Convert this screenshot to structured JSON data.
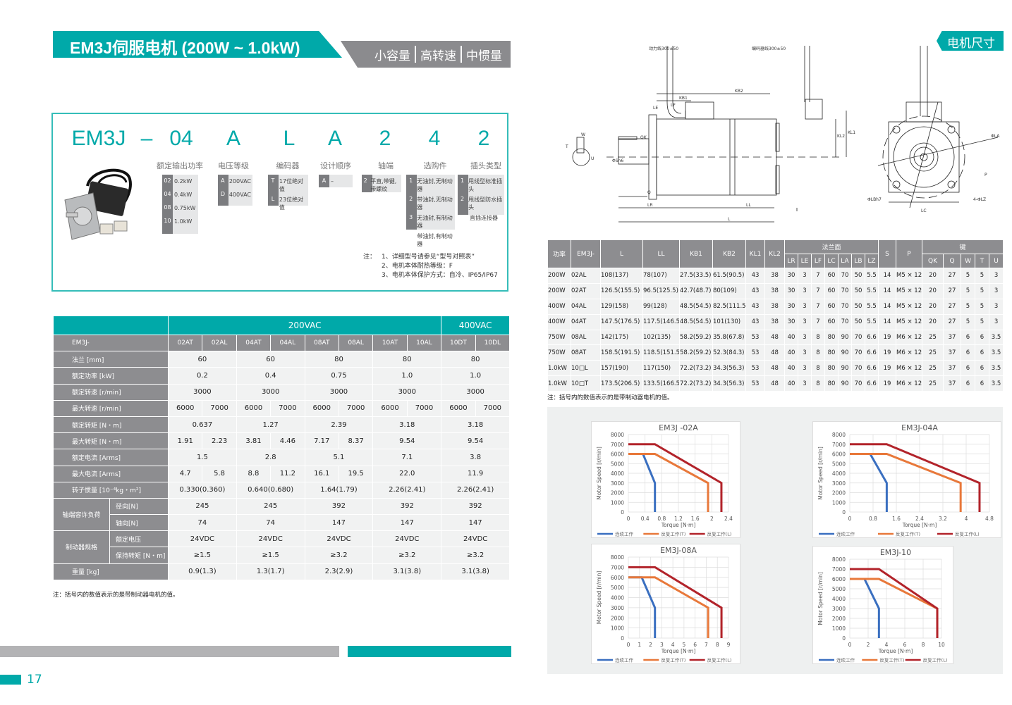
{
  "header": {
    "title": "EM3J伺服电机 (200W ~ 1.0kW)",
    "tags": [
      "小容量",
      "高转速",
      "中惯量"
    ],
    "section_tag": "电机尺寸"
  },
  "model_code": {
    "chars": [
      "EM3J",
      "–",
      "04",
      "A",
      "L",
      "A",
      "2",
      "4",
      "2"
    ],
    "labels": [
      "额定输出功率",
      "电压等级",
      "编码器",
      "设计顺序",
      "轴端",
      "选购件",
      "插头类型"
    ],
    "options": [
      [
        [
          "02",
          "0.2kW"
        ],
        [
          "04",
          "0.4kW"
        ],
        [
          "08",
          "0.75kW"
        ],
        [
          "10",
          "1.0kW"
        ]
      ],
      [
        [
          "A",
          "200VAC"
        ],
        [
          "D",
          "400VAC"
        ]
      ],
      [
        [
          "T",
          "17位绝对值"
        ],
        [
          "L",
          "23位绝对值"
        ]
      ],
      [
        [
          "A",
          "–"
        ]
      ],
      [
        [
          "2",
          "平直,带键,带螺纹"
        ]
      ],
      [
        [
          "1",
          "无油封,无制动器"
        ],
        [
          "2",
          "带油封,无制动器"
        ],
        [
          "3",
          "无油封,有制动器"
        ],
        [
          "4",
          "带油封,有制动器"
        ]
      ],
      [
        [
          "1",
          "甩线型标准插头"
        ],
        [
          "2",
          "甩线型防水插头"
        ],
        [
          "3",
          "直插连接器"
        ]
      ]
    ],
    "notes_label": "注：",
    "notes": [
      "1、详细型号请参见“型号对照表”",
      "2、电机本体耐热等级：F",
      "3、电机本体保护方式：自冷、IP65/IP67"
    ]
  },
  "spec_table": {
    "voltage_headers": [
      "200VAC",
      "400VAC"
    ],
    "model_label": "EM3J-",
    "models": [
      "02AT",
      "02AL",
      "04AT",
      "04AL",
      "08AT",
      "08AL",
      "10AT",
      "10AL",
      "10DT",
      "10DL"
    ],
    "rows": [
      {
        "label": "法兰 [mm]",
        "cells": [
          [
            "60",
            2
          ],
          [
            "60",
            2
          ],
          [
            "80",
            2
          ],
          [
            "80",
            2
          ],
          [
            "80",
            2
          ]
        ]
      },
      {
        "label": "额定功率 [kW]",
        "cells": [
          [
            "0.2",
            2
          ],
          [
            "0.4",
            2
          ],
          [
            "0.75",
            2
          ],
          [
            "1.0",
            2
          ],
          [
            "1.0",
            2
          ]
        ]
      },
      {
        "label": "额定转速 [r/min]",
        "cells": [
          [
            "3000",
            2
          ],
          [
            "3000",
            2
          ],
          [
            "3000",
            2
          ],
          [
            "3000",
            2
          ],
          [
            "3000",
            2
          ]
        ]
      },
      {
        "label": "最大转速 [r/min]",
        "cells": [
          [
            "6000",
            1
          ],
          [
            "7000",
            1
          ],
          [
            "6000",
            1
          ],
          [
            "7000",
            1
          ],
          [
            "6000",
            1
          ],
          [
            "7000",
            1
          ],
          [
            "6000",
            1
          ],
          [
            "7000",
            1
          ],
          [
            "6000",
            1
          ],
          [
            "7000",
            1
          ]
        ]
      },
      {
        "label": "额定转矩 [N・m]",
        "cells": [
          [
            "0.637",
            2
          ],
          [
            "1.27",
            2
          ],
          [
            "2.39",
            2
          ],
          [
            "3.18",
            2
          ],
          [
            "3.18",
            2
          ]
        ]
      },
      {
        "label": "最大转矩 [N・m]",
        "cells": [
          [
            "1.91",
            1
          ],
          [
            "2.23",
            1
          ],
          [
            "3.81",
            1
          ],
          [
            "4.46",
            1
          ],
          [
            "7.17",
            1
          ],
          [
            "8.37",
            1
          ],
          [
            "9.54",
            2
          ],
          [
            "9.54",
            2
          ]
        ]
      },
      {
        "label": "额定电流 [Arms]",
        "cells": [
          [
            "1.5",
            2
          ],
          [
            "2.8",
            2
          ],
          [
            "5.1",
            2
          ],
          [
            "7.1",
            2
          ],
          [
            "3.8",
            2
          ]
        ]
      },
      {
        "label": "最大电流 [Arms]",
        "cells": [
          [
            "4.7",
            1
          ],
          [
            "5.8",
            1
          ],
          [
            "8.8",
            1
          ],
          [
            "11.2",
            1
          ],
          [
            "16.1",
            1
          ],
          [
            "19.5",
            1
          ],
          [
            "22.0",
            2
          ],
          [
            "11.9",
            2
          ]
        ]
      },
      {
        "label": "转子惯量 [10⁻⁴kg・m²]",
        "cells": [
          [
            "0.330(0.360)",
            2
          ],
          [
            "0.640(0.680)",
            2
          ],
          [
            "1.64(1.79)",
            2
          ],
          [
            "2.26(2.41)",
            2
          ],
          [
            "2.26(2.41)",
            2
          ]
        ]
      },
      {
        "group": "轴端容许负荷",
        "label": "径向[N]",
        "cells": [
          [
            "245",
            2
          ],
          [
            "245",
            2
          ],
          [
            "392",
            2
          ],
          [
            "392",
            2
          ],
          [
            "392",
            2
          ]
        ]
      },
      {
        "label": "轴向[N]",
        "cells": [
          [
            "74",
            2
          ],
          [
            "74",
            2
          ],
          [
            "147",
            2
          ],
          [
            "147",
            2
          ],
          [
            "147",
            2
          ]
        ]
      },
      {
        "group": "制动器规格",
        "label": "额定电压",
        "cells": [
          [
            "24VDC",
            2
          ],
          [
            "24VDC",
            2
          ],
          [
            "24VDC",
            2
          ],
          [
            "24VDC",
            2
          ],
          [
            "24VDC",
            2
          ]
        ]
      },
      {
        "label": "保持转矩 [N・m]",
        "cells": [
          [
            "≥1.5",
            2
          ],
          [
            "≥1.5",
            2
          ],
          [
            "≥3.2",
            2
          ],
          [
            "≥3.2",
            2
          ],
          [
            "≥3.2",
            2
          ]
        ]
      },
      {
        "label": "重量 [kg]",
        "cells": [
          [
            "0.9(1.3)",
            2
          ],
          [
            "1.3(1.7)",
            2
          ],
          [
            "2.3(2.9)",
            2
          ],
          [
            "3.1(3.8)",
            2
          ],
          [
            "3.1(3.8)",
            2
          ]
        ]
      }
    ],
    "note": "注：括号内的数值表示的是带制动器电机的值。"
  },
  "drawing": {
    "labels": {
      "power_cable": "动力线300±50",
      "encoder_cable": "编码器线300±50",
      "KB2": "KB2",
      "KB1": "KB1",
      "LE": "LE",
      "LF": "LF",
      "KL1": "KL1",
      "KL2": "KL2",
      "QK": "QK",
      "Q": "Q",
      "LR": "LR",
      "LL": "LL",
      "L": "L",
      "W": "W",
      "T": "T",
      "U": "U",
      "S": "ΦSh6",
      "LA": "ΦLA",
      "P": "P",
      "LZ": "4-ΦLZ",
      "LB": "ΦLBh7",
      "LC": "LC"
    }
  },
  "dim_table": {
    "headers": [
      "功率",
      "EM3J-",
      "L",
      "LL",
      "KB1",
      "KB2",
      "KL1",
      "KL2",
      "法兰面",
      "S",
      "P",
      "键"
    ],
    "sub_flange": [
      "LR",
      "LE",
      "LF",
      "LC",
      "LA",
      "LB",
      "LZ"
    ],
    "sub_key": [
      "QK",
      "Q",
      "W",
      "T",
      "U"
    ],
    "rows": [
      [
        "200W",
        "02AL",
        "108(137)",
        "78(107)",
        "27.5(33.5)",
        "61.5(90.5)",
        "43",
        "38",
        "30",
        "3",
        "7",
        "60",
        "70",
        "50",
        "5.5",
        "14",
        "M5 × 12",
        "20",
        "27",
        "5",
        "5",
        "3"
      ],
      [
        "200W",
        "02AT",
        "126.5(155.5)",
        "96.5(125.5)",
        "42.7(48.7)",
        "80(109)",
        "43",
        "38",
        "30",
        "3",
        "7",
        "60",
        "70",
        "50",
        "5.5",
        "14",
        "M5 × 12",
        "20",
        "27",
        "5",
        "5",
        "3"
      ],
      [
        "400W",
        "04AL",
        "129(158)",
        "99(128)",
        "48.5(54.5)",
        "82.5(111.5)",
        "43",
        "38",
        "30",
        "3",
        "7",
        "60",
        "70",
        "50",
        "5.5",
        "14",
        "M5 × 12",
        "20",
        "27",
        "5",
        "5",
        "3"
      ],
      [
        "400W",
        "04AT",
        "147.5(176.5)",
        "117.5(146.5)",
        "48.5(54.5)",
        "101(130)",
        "43",
        "38",
        "30",
        "3",
        "7",
        "60",
        "70",
        "50",
        "5.5",
        "14",
        "M5 × 12",
        "20",
        "27",
        "5",
        "5",
        "3"
      ],
      [
        "750W",
        "08AL",
        "142(175)",
        "102(135)",
        "58.2(59.2)",
        "35.8(67.8)",
        "53",
        "48",
        "40",
        "3",
        "8",
        "80",
        "90",
        "70",
        "6.6",
        "19",
        "M6 × 12",
        "25",
        "37",
        "6",
        "6",
        "3.5"
      ],
      [
        "750W",
        "08AT",
        "158.5(191.5)",
        "118.5(151.5)",
        "58.2(59.2)",
        "52.3(84.3)",
        "53",
        "48",
        "40",
        "3",
        "8",
        "80",
        "90",
        "70",
        "6.6",
        "19",
        "M6 × 12",
        "25",
        "37",
        "6",
        "6",
        "3.5"
      ],
      [
        "1.0kW",
        "10□L",
        "157(190)",
        "117(150)",
        "72.2(73.2)",
        "34.3(56.3)",
        "53",
        "48",
        "40",
        "3",
        "8",
        "80",
        "90",
        "70",
        "6.6",
        "19",
        "M6 × 12",
        "25",
        "37",
        "6",
        "6",
        "3.5"
      ],
      [
        "1.0kW",
        "10□T",
        "173.5(206.5)",
        "133.5(166.5)",
        "72.2(73.2)",
        "34.3(56.3)",
        "53",
        "48",
        "40",
        "3",
        "8",
        "80",
        "90",
        "70",
        "6.6",
        "19",
        "M6 × 12",
        "25",
        "37",
        "6",
        "6",
        "3.5"
      ]
    ],
    "note": "注：括号内的数值表示的是带制动器电机的值。"
  },
  "colors": {
    "teal": "#00a9a9",
    "gray": "#8d8d90",
    "continuous": "#3a6fc0",
    "repeat_T": "#e8783a",
    "repeat_L": "#b2232a"
  },
  "chart_data": [
    {
      "type": "line",
      "title": "EM3J -02A",
      "xlabel": "Torque [N·m]",
      "ylabel": "Motor Speed [r/min]",
      "xlim": [
        0,
        2.4
      ],
      "xticks": [
        "0",
        "0.4",
        "0.8",
        "1.2",
        "1.6",
        "2",
        "2.4"
      ],
      "ylim": [
        0,
        8000
      ],
      "yticks": [
        "0",
        "1000",
        "2000",
        "3000",
        "4000",
        "5000",
        "6000",
        "7000",
        "8000"
      ],
      "grid": true,
      "legend": "bottom",
      "series": [
        {
          "name": "连续工作",
          "x": [
            0,
            0.35,
            0.637,
            0.637
          ],
          "y": [
            6000,
            6000,
            3000,
            0
          ]
        },
        {
          "name": "反复工作(T)",
          "x": [
            0,
            0.637,
            1.91,
            1.91
          ],
          "y": [
            6000,
            6000,
            3000,
            0
          ]
        },
        {
          "name": "反复工作(L)",
          "x": [
            0,
            0.637,
            2.23,
            2.23
          ],
          "y": [
            7000,
            7000,
            3000,
            0
          ]
        }
      ]
    },
    {
      "type": "line",
      "title": "EM3J-04A",
      "xlabel": "Torque [N·m]",
      "ylabel": "Motor Speed [r/min]",
      "xlim": [
        0,
        4.8
      ],
      "xticks": [
        "0",
        "0.8",
        "1.6",
        "2.4",
        "3.2",
        "4",
        "4.8"
      ],
      "ylim": [
        0,
        8000
      ],
      "yticks": [
        "0",
        "1000",
        "2000",
        "3000",
        "4000",
        "5000",
        "6000",
        "7000",
        "8000"
      ],
      "grid": true,
      "legend": "bottom",
      "series": [
        {
          "name": "连续工作",
          "x": [
            0,
            0.7,
            1.27,
            1.27
          ],
          "y": [
            6000,
            6000,
            3000,
            0
          ]
        },
        {
          "name": "反复工作(T)",
          "x": [
            0,
            1.27,
            3.81,
            3.81
          ],
          "y": [
            6000,
            6000,
            3000,
            0
          ]
        },
        {
          "name": "反复工作(L)",
          "x": [
            0,
            1.27,
            4.46,
            4.46
          ],
          "y": [
            7000,
            7000,
            3000,
            0
          ]
        }
      ]
    },
    {
      "type": "line",
      "title": "EM3J-08A",
      "xlabel": "Torque [N·m]",
      "ylabel": "Motor Speed [r/min]",
      "xlim": [
        0,
        9
      ],
      "xticks": [
        "0",
        "1",
        "2",
        "3",
        "4",
        "5",
        "6",
        "7",
        "8",
        "9"
      ],
      "ylim": [
        0,
        8000
      ],
      "yticks": [
        "0",
        "1000",
        "2000",
        "3000",
        "4000",
        "5000",
        "6000",
        "7000",
        "8000"
      ],
      "grid": true,
      "legend": "bottom",
      "series": [
        {
          "name": "连续工作",
          "x": [
            0,
            1.2,
            2.39,
            2.39
          ],
          "y": [
            6000,
            6000,
            3000,
            0
          ]
        },
        {
          "name": "反复工作(T)",
          "x": [
            0,
            2.39,
            7.17,
            7.17
          ],
          "y": [
            6000,
            6000,
            3000,
            0
          ]
        },
        {
          "name": "反复工作(L)",
          "x": [
            0,
            2.39,
            8.37,
            8.37
          ],
          "y": [
            7000,
            7000,
            3000,
            0
          ]
        }
      ]
    },
    {
      "type": "line",
      "title": "EM3J-10",
      "xlabel": "Torque [N·m]",
      "ylabel": "Motor Speed [r/min]",
      "xlim": [
        0,
        10
      ],
      "xticks": [
        "0",
        "2",
        "4",
        "6",
        "8",
        "10"
      ],
      "ylim": [
        0,
        8000
      ],
      "yticks": [
        "0",
        "1000",
        "2000",
        "3000",
        "4000",
        "5000",
        "6000",
        "7000",
        "8000"
      ],
      "grid": true,
      "legend": "bottom",
      "series": [
        {
          "name": "连续工作",
          "x": [
            0,
            1.6,
            3.18,
            3.18
          ],
          "y": [
            6000,
            6000,
            3000,
            0
          ]
        },
        {
          "name": "反复工作(T)",
          "x": [
            0,
            3.18,
            9.54,
            9.54
          ],
          "y": [
            6000,
            6000,
            3000,
            0
          ]
        },
        {
          "name": "反复工作(L)",
          "x": [
            0,
            3.18,
            9.54,
            9.54
          ],
          "y": [
            7000,
            7000,
            3000,
            0
          ]
        }
      ]
    }
  ],
  "footer": {
    "page_number": "17"
  }
}
